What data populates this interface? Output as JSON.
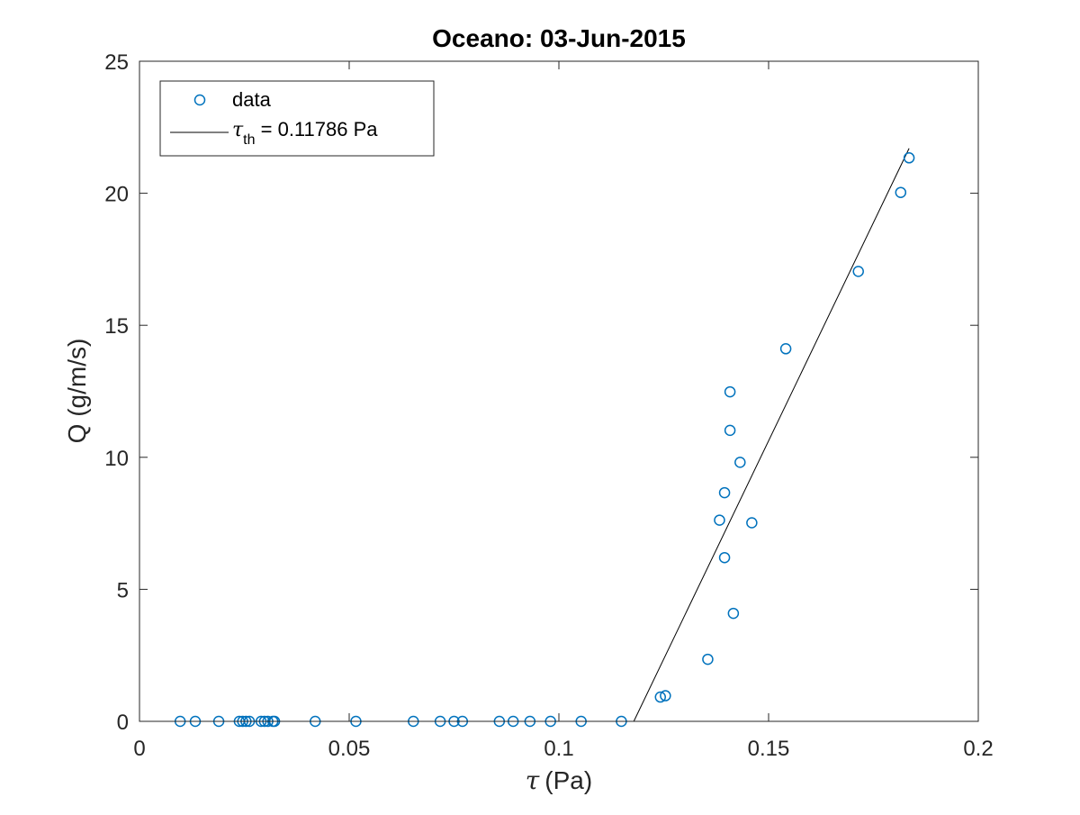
{
  "chart_data": {
    "type": "scatter",
    "title": "Oceano: 03-Jun-2015",
    "xlabel_symbol": "τ",
    "xlabel_unit": "(Pa)",
    "ylabel": "Q (g/m/s)",
    "xlim": [
      0,
      0.2
    ],
    "ylim": [
      0,
      25
    ],
    "x_ticks": [
      0,
      0.05,
      0.1,
      0.15,
      0.2
    ],
    "x_tick_labels": [
      "0",
      "0.05",
      "0.1",
      "0.15",
      "0.2"
    ],
    "y_ticks": [
      0,
      5,
      10,
      15,
      20,
      25
    ],
    "y_tick_labels": [
      "0",
      "5",
      "10",
      "15",
      "20",
      "25"
    ],
    "grid": false,
    "legend_placement": "top-left",
    "series": [
      {
        "name": "data",
        "marker": "open-circle",
        "color": "#0072bd",
        "points": [
          [
            0.0097,
            0
          ],
          [
            0.0133,
            0
          ],
          [
            0.0189,
            0
          ],
          [
            0.0238,
            0
          ],
          [
            0.0246,
            0
          ],
          [
            0.0254,
            0
          ],
          [
            0.0262,
            0
          ],
          [
            0.029,
            0
          ],
          [
            0.0298,
            0
          ],
          [
            0.0306,
            0
          ],
          [
            0.0318,
            0
          ],
          [
            0.0322,
            0
          ],
          [
            0.0419,
            0
          ],
          [
            0.0516,
            0
          ],
          [
            0.0653,
            0
          ],
          [
            0.0717,
            0
          ],
          [
            0.075,
            0
          ],
          [
            0.077,
            0
          ],
          [
            0.0858,
            0
          ],
          [
            0.0891,
            0
          ],
          [
            0.0931,
            0
          ],
          [
            0.098,
            0
          ],
          [
            0.1053,
            0
          ],
          [
            0.1149,
            0
          ],
          [
            0.1242,
            0.92
          ],
          [
            0.1254,
            0.97
          ],
          [
            0.1355,
            2.35
          ],
          [
            0.1383,
            7.62
          ],
          [
            0.1395,
            8.66
          ],
          [
            0.1395,
            6.2
          ],
          [
            0.1408,
            11.02
          ],
          [
            0.1408,
            12.48
          ],
          [
            0.1416,
            4.09
          ],
          [
            0.1432,
            9.81
          ],
          [
            0.146,
            7.52
          ],
          [
            0.1541,
            14.11
          ],
          [
            0.1714,
            17.04
          ],
          [
            0.1815,
            20.03
          ],
          [
            0.1835,
            21.34
          ]
        ]
      },
      {
        "name": "τ_th = 0.11786 Pa",
        "type": "line",
        "color": "#000000",
        "points": [
          [
            0.11786,
            0
          ],
          [
            0.1835,
            21.7
          ]
        ]
      }
    ],
    "legend": [
      {
        "label": "data"
      },
      {
        "label_symbol": "τ",
        "label_sub": "th",
        "label_rest": " = 0.11786 Pa"
      }
    ]
  }
}
